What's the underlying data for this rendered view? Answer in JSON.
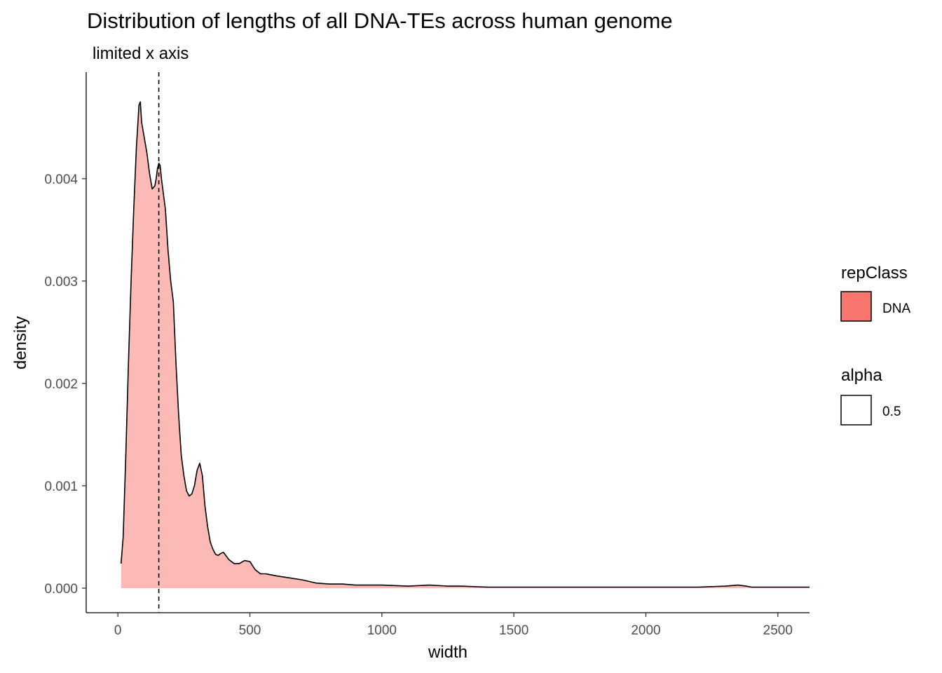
{
  "chart_data": {
    "type": "area",
    "title": "Distribution of lengths of all DNA-TEs across human genome",
    "subtitle": "limited x axis",
    "xlabel": "width",
    "ylabel": "density",
    "xlim": [
      -120,
      2620
    ],
    "ylim": [
      -0.00024,
      0.00504
    ],
    "x_ticks": [
      0,
      500,
      1000,
      1500,
      2000,
      2500
    ],
    "x_tick_labels": [
      "0",
      "500",
      "1000",
      "1500",
      "2000",
      "2500"
    ],
    "y_ticks": [
      0,
      0.001,
      0.002,
      0.003,
      0.004
    ],
    "y_tick_labels": [
      "0.000",
      "0.001",
      "0.002",
      "0.003",
      "0.004"
    ],
    "grid": false,
    "vline": {
      "x": 155,
      "style": "dashed"
    },
    "series": [
      {
        "name": "DNA",
        "fill": "#F8766D",
        "alpha": 0.5,
        "x": [
          12,
          20,
          30,
          40,
          50,
          60,
          70,
          80,
          85,
          90,
          100,
          110,
          120,
          130,
          140,
          145,
          150,
          155,
          160,
          165,
          170,
          180,
          190,
          200,
          210,
          220,
          230,
          240,
          250,
          260,
          270,
          280,
          290,
          300,
          310,
          320,
          330,
          340,
          350,
          360,
          370,
          380,
          390,
          400,
          420,
          440,
          460,
          480,
          500,
          520,
          540,
          560,
          600,
          650,
          700,
          750,
          800,
          850,
          900,
          1000,
          1100,
          1180,
          1250,
          1300,
          1400,
          1500,
          1600,
          1800,
          2000,
          2200,
          2300,
          2350,
          2380,
          2400,
          2450,
          2500,
          2620
        ],
        "y": [
          0.00024,
          0.0005,
          0.0013,
          0.0022,
          0.003,
          0.0037,
          0.0043,
          0.00472,
          0.00475,
          0.00455,
          0.0044,
          0.00425,
          0.00405,
          0.0039,
          0.00393,
          0.004,
          0.0041,
          0.00415,
          0.00413,
          0.004,
          0.0039,
          0.0037,
          0.0033,
          0.003,
          0.0028,
          0.0022,
          0.0017,
          0.0013,
          0.0011,
          0.00095,
          0.0009,
          0.00092,
          0.001,
          0.00115,
          0.00122,
          0.0011,
          0.0008,
          0.0006,
          0.00045,
          0.00038,
          0.00033,
          0.00032,
          0.00034,
          0.00035,
          0.00028,
          0.00024,
          0.00024,
          0.00027,
          0.00026,
          0.00018,
          0.00014,
          0.00014,
          0.00012,
          0.0001,
          8e-05,
          5e-05,
          4e-05,
          4e-05,
          3e-05,
          3e-05,
          2e-05,
          3e-05,
          2e-05,
          2e-05,
          1e-05,
          1e-05,
          1e-05,
          1e-05,
          1e-05,
          1e-05,
          2e-05,
          3e-05,
          2e-05,
          1e-05,
          1e-05,
          1e-05,
          1e-05
        ]
      }
    ],
    "legends": [
      {
        "title": "repClass",
        "key_fill": "#F8766D",
        "label": "DNA"
      },
      {
        "title": "alpha",
        "key_fill": "#FFFFFF",
        "label": "0.5"
      }
    ]
  }
}
